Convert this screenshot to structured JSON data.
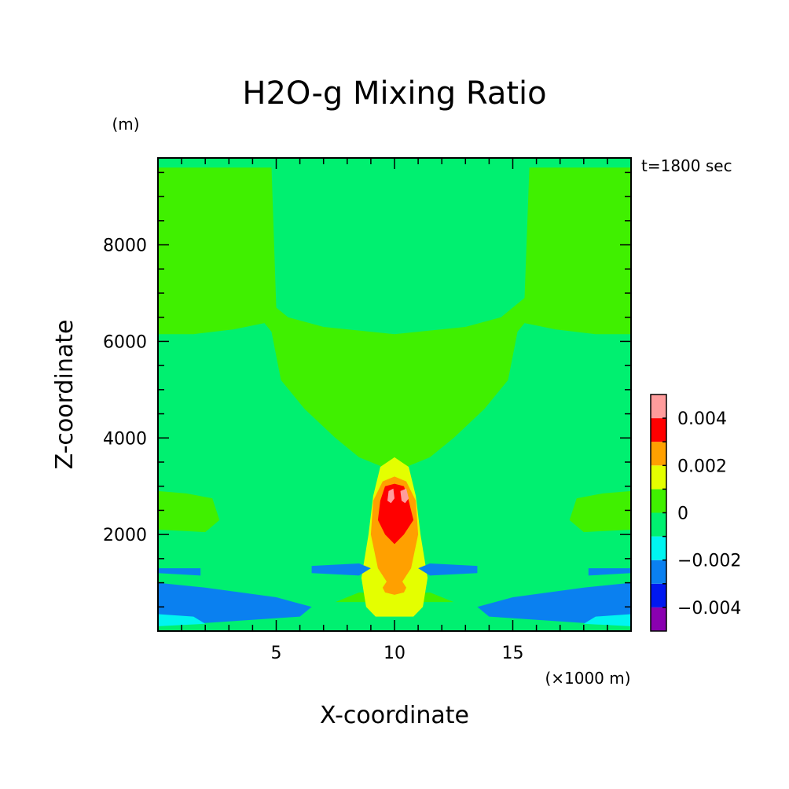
{
  "chart_data": {
    "type": "heatmap",
    "title": "H2O-g Mixing Ratio",
    "time_label": "t=1800 sec",
    "xlabel": "X-coordinate",
    "ylabel": "Z-coordinate",
    "x_unit": "(×1000 m)",
    "y_unit": "(m)",
    "xlim": [
      0,
      20
    ],
    "ylim": [
      0,
      9800
    ],
    "xticks": [
      5,
      10,
      15
    ],
    "xtick_labels": [
      "5",
      "10",
      "15"
    ],
    "yticks": [
      2000,
      4000,
      6000,
      8000
    ],
    "ytick_labels": [
      "2000",
      "4000",
      "6000",
      "8000"
    ],
    "colorbar": {
      "levels": [
        -0.005,
        -0.004,
        -0.003,
        -0.002,
        -0.001,
        0,
        0.001,
        0.002,
        0.003,
        0.004,
        0.005
      ],
      "colors": [
        "#8a00b0",
        "#0018f0",
        "#0a80f0",
        "#00f5f0",
        "#00f070",
        "#40f000",
        "#e4ff00",
        "#ffa000",
        "#ff0000",
        "#ff9c9c"
      ],
      "tick_values": [
        -0.004,
        -0.002,
        0,
        0.002,
        0.004
      ],
      "tick_labels": [
        "−0.004",
        "−0.002",
        "0",
        "0.002",
        "0.004"
      ]
    },
    "regions": [
      {
        "level_index": 5,
        "polygon": [
          [
            0,
            0
          ],
          [
            20,
            0
          ],
          [
            20,
            9800
          ],
          [
            0,
            9800
          ]
        ]
      },
      {
        "level_index": 6,
        "polygon": [
          [
            0,
            6150
          ],
          [
            1.5,
            6150
          ],
          [
            3.2,
            6250
          ],
          [
            4.5,
            6380
          ],
          [
            4.8,
            6200
          ],
          [
            5.2,
            5200
          ],
          [
            6.2,
            4600
          ],
          [
            7.5,
            4000
          ],
          [
            8.5,
            3600
          ],
          [
            9.5,
            3400
          ],
          [
            10.5,
            3400
          ],
          [
            11.5,
            3600
          ],
          [
            12.5,
            4000
          ],
          [
            13.8,
            4600
          ],
          [
            14.8,
            5200
          ],
          [
            15.2,
            6200
          ],
          [
            15.5,
            6380
          ],
          [
            16.8,
            6250
          ],
          [
            18.5,
            6150
          ],
          [
            20,
            6150
          ],
          [
            20,
            9600
          ],
          [
            15.7,
            9600
          ],
          [
            15.5,
            6900
          ],
          [
            14.5,
            6500
          ],
          [
            13,
            6300
          ],
          [
            10,
            6150
          ],
          [
            7,
            6300
          ],
          [
            5.5,
            6500
          ],
          [
            5,
            6700
          ],
          [
            4.8,
            9600
          ],
          [
            0,
            9600
          ]
        ]
      },
      {
        "level_index": 6,
        "polygon": [
          [
            0,
            2100
          ],
          [
            2,
            2050
          ],
          [
            2.6,
            2300
          ],
          [
            2.3,
            2750
          ],
          [
            1.2,
            2850
          ],
          [
            0,
            2900
          ]
        ]
      },
      {
        "level_index": 6,
        "polygon": [
          [
            20,
            2100
          ],
          [
            18,
            2050
          ],
          [
            17.4,
            2300
          ],
          [
            17.7,
            2750
          ],
          [
            18.8,
            2850
          ],
          [
            20,
            2900
          ]
        ]
      },
      {
        "level_index": 6,
        "polygon": [
          [
            7.5,
            600
          ],
          [
            9,
            600
          ],
          [
            9.2,
            400
          ],
          [
            10.8,
            400
          ],
          [
            11,
            600
          ],
          [
            12.5,
            600
          ],
          [
            11.5,
            800
          ],
          [
            10,
            750
          ],
          [
            8.5,
            800
          ]
        ]
      },
      {
        "level_index": 7,
        "polygon": [
          [
            8.8,
            500
          ],
          [
            9.2,
            300
          ],
          [
            10.8,
            300
          ],
          [
            11.2,
            500
          ],
          [
            11.4,
            1100
          ],
          [
            11.1,
            2000
          ],
          [
            10.9,
            2800
          ],
          [
            10.6,
            3400
          ],
          [
            10,
            3600
          ],
          [
            9.4,
            3400
          ],
          [
            9.1,
            2800
          ],
          [
            8.9,
            2000
          ],
          [
            8.6,
            1100
          ]
        ]
      },
      {
        "level_index": 8,
        "polygon": [
          [
            9.3,
            1300
          ],
          [
            9.7,
            1000
          ],
          [
            10.3,
            1000
          ],
          [
            10.7,
            1300
          ],
          [
            11,
            2000
          ],
          [
            10.9,
            2700
          ],
          [
            10.5,
            3100
          ],
          [
            10,
            3200
          ],
          [
            9.5,
            3100
          ],
          [
            9.1,
            2700
          ],
          [
            9,
            2000
          ]
        ]
      },
      {
        "level_index": 8,
        "polygon": [
          [
            9.6,
            800
          ],
          [
            10,
            750
          ],
          [
            10.4,
            800
          ],
          [
            10.5,
            900
          ],
          [
            10.3,
            1050
          ],
          [
            9.7,
            1050
          ],
          [
            9.5,
            900
          ]
        ]
      },
      {
        "level_index": 9,
        "polygon": [
          [
            9.6,
            2000
          ],
          [
            10,
            1800
          ],
          [
            10.4,
            2000
          ],
          [
            10.8,
            2300
          ],
          [
            10.6,
            2700
          ],
          [
            10.4,
            3000
          ],
          [
            10,
            3050
          ],
          [
            9.6,
            3000
          ],
          [
            9.4,
            2700
          ],
          [
            9.3,
            2300
          ]
        ]
      },
      {
        "level_index": 10,
        "polygon": [
          [
            9.7,
            2700
          ],
          [
            9.85,
            2650
          ],
          [
            10,
            2750
          ],
          [
            9.95,
            2950
          ],
          [
            9.75,
            2900
          ]
        ]
      },
      {
        "level_index": 10,
        "polygon": [
          [
            10.3,
            2700
          ],
          [
            10.45,
            2650
          ],
          [
            10.6,
            2750
          ],
          [
            10.5,
            2950
          ],
          [
            10.25,
            2900
          ]
        ]
      },
      {
        "level_index": 3,
        "polygon": [
          [
            0,
            100
          ],
          [
            6,
            300
          ],
          [
            6.5,
            500
          ],
          [
            5,
            700
          ],
          [
            2,
            900
          ],
          [
            0,
            1000
          ]
        ]
      },
      {
        "level_index": 3,
        "polygon": [
          [
            20,
            100
          ],
          [
            14,
            300
          ],
          [
            13.5,
            500
          ],
          [
            15,
            700
          ],
          [
            18,
            900
          ],
          [
            20,
            1000
          ]
        ]
      },
      {
        "level_index": 3,
        "polygon": [
          [
            0,
            1200
          ],
          [
            1.8,
            1150
          ],
          [
            1.8,
            1300
          ],
          [
            0,
            1300
          ]
        ]
      },
      {
        "level_index": 3,
        "polygon": [
          [
            20,
            1200
          ],
          [
            18.2,
            1150
          ],
          [
            18.2,
            1300
          ],
          [
            20,
            1300
          ]
        ]
      },
      {
        "level_index": 3,
        "polygon": [
          [
            6.5,
            1200
          ],
          [
            8.5,
            1150
          ],
          [
            9,
            1300
          ],
          [
            8.5,
            1400
          ],
          [
            6.5,
            1350
          ]
        ]
      },
      {
        "level_index": 3,
        "polygon": [
          [
            13.5,
            1200
          ],
          [
            11.5,
            1150
          ],
          [
            11,
            1300
          ],
          [
            11.5,
            1400
          ],
          [
            13.5,
            1350
          ]
        ]
      },
      {
        "level_index": 4,
        "polygon": [
          [
            0,
            100
          ],
          [
            2,
            150
          ],
          [
            1.5,
            300
          ],
          [
            0,
            350
          ]
        ]
      },
      {
        "level_index": 4,
        "polygon": [
          [
            20,
            100
          ],
          [
            18,
            150
          ],
          [
            18.5,
            300
          ],
          [
            20,
            350
          ]
        ]
      }
    ]
  }
}
